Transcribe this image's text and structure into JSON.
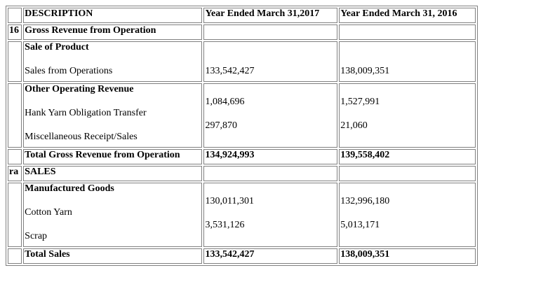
{
  "table": {
    "header": {
      "index": "",
      "description": "DESCRIPTION",
      "year_2017": "Year Ended March 31,2017",
      "year_2016": "Year Ended March 31, 2016"
    },
    "gross_revenue": {
      "index": "16",
      "title": "Gross Revenue from Operation",
      "sale_of_product": {
        "heading": "Sale of Product",
        "line_label": "Sales from Operations",
        "value_2017": "133,542,427",
        "value_2016": "138,009,351"
      },
      "other_operating": {
        "heading": "Other Operating Revenue",
        "line1_label": "Hank Yarn Obligation Transfer",
        "line2_label": "Miscellaneous Receipt/Sales",
        "value1_2017": "1,084,696",
        "value2_2017": "297,870",
        "value1_2016": "1,527,991",
        "value2_2016": "21,060"
      },
      "total": {
        "label": "Total Gross Revenue from Operation",
        "value_2017": "134,924,993",
        "value_2016": "139,558,402"
      }
    },
    "sales": {
      "index": "ra",
      "title": "SALES",
      "manufactured": {
        "heading": "Manufactured Goods",
        "line1_label": "Cotton Yarn",
        "line2_label": "Scrap",
        "value1_2017": "130,011,301",
        "value2_2017": "3,531,126",
        "value1_2016": "132,996,180",
        "value2_2016": "5,013,171"
      },
      "total": {
        "label": "Total Sales",
        "value_2017": "133,542,427",
        "value_2016": "138,009,351"
      }
    }
  }
}
